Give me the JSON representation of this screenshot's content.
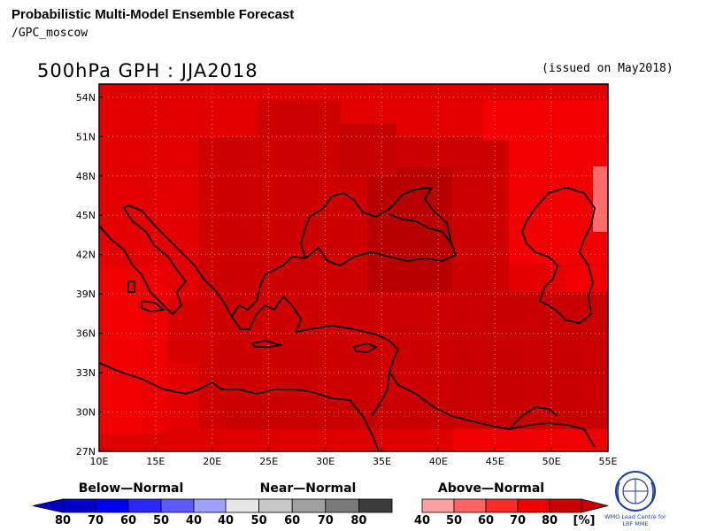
{
  "header": {
    "title": "Probabilistic Multi-Model Ensemble Forecast",
    "subtitle": "/GPC_moscow",
    "map_title": "500hPa GPH : JJA2018",
    "issued": "(issued on May2018)"
  },
  "map": {
    "lon_range": [
      10,
      55
    ],
    "lat_range": [
      27,
      55
    ],
    "lon_ticks": [
      "10E",
      "15E",
      "20E",
      "25E",
      "30E",
      "35E",
      "40E",
      "45E",
      "50E",
      "55E"
    ],
    "lat_ticks": [
      "27N",
      "30N",
      "33N",
      "36N",
      "39N",
      "42N",
      "45N",
      "48N",
      "51N",
      "54N"
    ],
    "grid": "dotted"
  },
  "legend": {
    "below": {
      "title": "Below—Normal",
      "ticks": [
        "80",
        "70",
        "60",
        "50",
        "40"
      ],
      "colors": [
        "#0000c8",
        "#0000f5",
        "#2828ff",
        "#5a5aff",
        "#a0a0ff"
      ]
    },
    "near": {
      "title": "Near—Normal",
      "ticks": [
        "40",
        "50",
        "60",
        "70",
        "80"
      ],
      "colors": [
        "#e6e6e6",
        "#c8c8c8",
        "#a0a0a0",
        "#7a7a7a",
        "#3c3c3c"
      ]
    },
    "above": {
      "title": "Above—Normal",
      "ticks": [
        "40",
        "50",
        "60",
        "70",
        "80"
      ],
      "unit": "[%]",
      "colors": [
        "#ffa0a0",
        "#ff6464",
        "#ff2a2a",
        "#f00000",
        "#c80000"
      ]
    }
  },
  "logo": {
    "line1": "WMO Lead Centre for",
    "line2": "LRF MME"
  }
}
